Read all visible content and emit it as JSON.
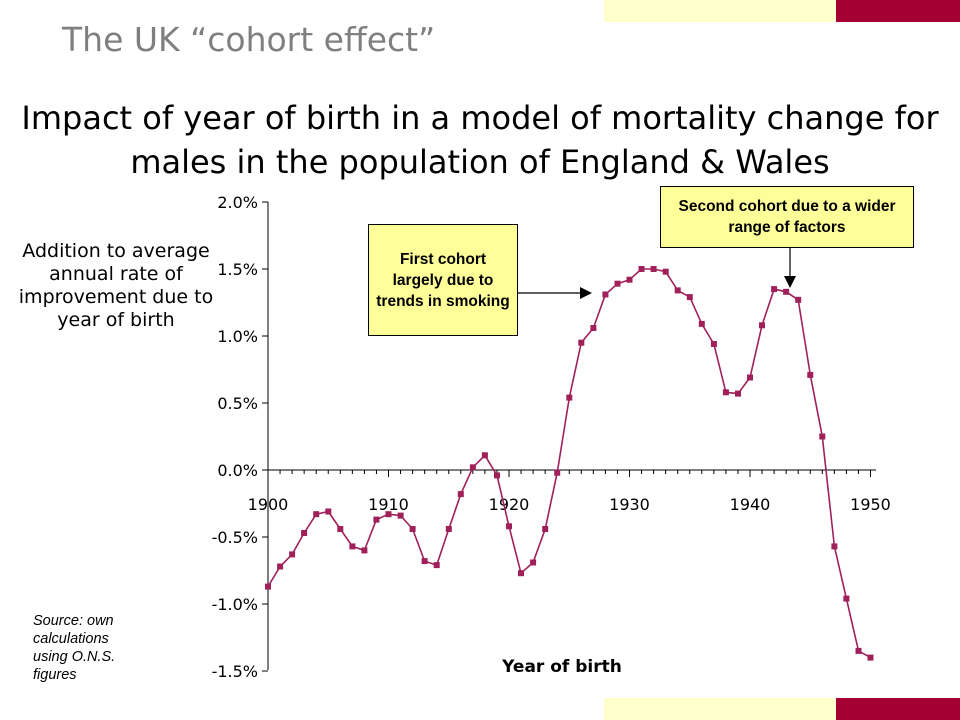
{
  "slide_title": "The UK “cohort effect”",
  "colors": {
    "cream": "#ffffcc",
    "maroon": "#a50034",
    "series": "#a0205a",
    "title_gray": "#7f7f7f",
    "callout_bg": "#ffff99"
  },
  "source_note": "Source: own calculations using O.N.S. figures",
  "callouts": {
    "first": "First cohort largely due to trends in smoking",
    "second": "Second cohort due to a wider range of factors"
  },
  "chart_data": {
    "type": "line",
    "title": "Impact of year of birth in a model of mortality change for males in the population of England & Wales",
    "xlabel": "Year of birth",
    "ylabel": "Addition to average annual rate of improvement due to year of birth",
    "xlim": [
      1900,
      1950
    ],
    "ylim": [
      -1.5,
      2.0
    ],
    "x_ticks": [
      1900,
      1910,
      1920,
      1930,
      1940,
      1950
    ],
    "y_ticks": [
      2.0,
      1.5,
      1.0,
      0.5,
      0.0,
      -0.5,
      -1.0,
      -1.5
    ],
    "y_tick_labels": [
      "2.0%",
      "1.5%",
      "1.0%",
      "0.5%",
      "0.0%",
      "-0.5%",
      "-1.0%",
      "-1.5%"
    ],
    "grid": false,
    "legend": "none",
    "series": [
      {
        "x": [
          1900,
          1901,
          1902,
          1903,
          1904,
          1905,
          1906,
          1907,
          1908,
          1909,
          1910,
          1911,
          1912,
          1913,
          1914,
          1915,
          1916,
          1917,
          1918,
          1919,
          1920,
          1921,
          1922,
          1923,
          1924,
          1925,
          1926,
          1927,
          1928,
          1929,
          1930,
          1931,
          1932,
          1933,
          1934,
          1935,
          1936,
          1937,
          1938,
          1939,
          1940,
          1941,
          1942,
          1943,
          1944,
          1945,
          1946,
          1947,
          1948,
          1949,
          1950
        ],
        "y": [
          -0.87,
          -0.72,
          -0.63,
          -0.47,
          -0.33,
          -0.31,
          -0.44,
          -0.57,
          -0.6,
          -0.37,
          -0.33,
          -0.34,
          -0.44,
          -0.68,
          -0.71,
          -0.44,
          -0.18,
          0.02,
          0.11,
          -0.04,
          -0.42,
          -0.77,
          -0.69,
          -0.44,
          -0.02,
          0.54,
          0.95,
          1.06,
          1.31,
          1.39,
          1.42,
          1.5,
          1.5,
          1.48,
          1.34,
          1.29,
          1.09,
          0.94,
          0.58,
          0.57,
          0.69,
          1.08,
          1.35,
          1.33,
          1.27,
          0.71,
          0.25,
          -0.57,
          -0.96,
          -1.35,
          -1.4
        ]
      }
    ]
  }
}
